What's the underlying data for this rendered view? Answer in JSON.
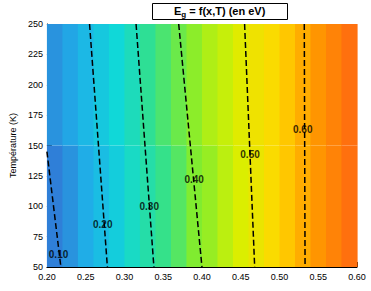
{
  "chart_data": {
    "type": "contour",
    "title": "Eg = f(x,T) (en eV)",
    "y_label": "Température (K)",
    "xlim": [
      0.2,
      0.6
    ],
    "xticks": [
      {
        "value": 0.2,
        "label": "0.20"
      },
      {
        "value": 0.25,
        "label": "0.25"
      },
      {
        "value": 0.3,
        "label": "0.30"
      },
      {
        "value": 0.35,
        "label": "0.35"
      },
      {
        "value": 0.4,
        "label": "0.40"
      },
      {
        "value": 0.45,
        "label": "0.45"
      },
      {
        "value": 0.5,
        "label": "0.50"
      },
      {
        "value": 0.55,
        "label": "0.55"
      },
      {
        "value": 0.6,
        "label": "0.60"
      }
    ],
    "ylim": [
      50,
      250
    ],
    "yticks": [
      50,
      75,
      100,
      125,
      150,
      175,
      200,
      225,
      250
    ],
    "grid": false,
    "cells": {
      "x_edges": [
        0.2,
        0.22,
        0.24,
        0.26,
        0.28,
        0.3,
        0.32,
        0.34,
        0.36,
        0.38,
        0.4,
        0.42,
        0.44,
        0.46,
        0.48,
        0.5,
        0.52,
        0.54,
        0.56,
        0.58,
        0.6
      ],
      "y_edges": [
        50,
        150,
        250
      ],
      "values": [
        [
          0.1,
          0.13,
          0.17,
          0.2,
          0.23,
          0.27,
          0.3,
          0.33,
          0.36,
          0.4,
          0.42,
          0.45,
          0.48,
          0.51,
          0.54,
          0.57,
          0.6,
          0.63,
          0.66,
          0.69
        ],
        [
          0.13,
          0.16,
          0.19,
          0.22,
          0.25,
          0.28,
          0.32,
          0.35,
          0.38,
          0.41,
          0.44,
          0.46,
          0.49,
          0.52,
          0.54,
          0.57,
          0.6,
          0.63,
          0.66,
          0.69
        ]
      ]
    },
    "color_scale": {
      "range": [
        0.1,
        0.7
      ],
      "colors": [
        "#2f7fd8",
        "#1fb0e8",
        "#10d8d8",
        "#30e090",
        "#80ec30",
        "#d8f000",
        "#ffd800",
        "#ff9800",
        "#ff6a10"
      ]
    },
    "contours": [
      {
        "label": "0.10",
        "x": [
          0.2,
          0.218
        ],
        "y": [
          145,
          50
        ],
        "label_x": 0.215,
        "label_y": 60,
        "color": "#000000",
        "line_style": "dashed"
      },
      {
        "label": "0.20",
        "x": [
          0.255,
          0.278
        ],
        "y": [
          250,
          50
        ],
        "label_x": 0.272,
        "label_y": 85,
        "color": "#000000",
        "line_style": "dashed"
      },
      {
        "label": "0.30",
        "x": [
          0.315,
          0.338
        ],
        "y": [
          250,
          50
        ],
        "label_x": 0.332,
        "label_y": 100,
        "color": "#000000",
        "line_style": "dashed"
      },
      {
        "label": "0.40",
        "x": [
          0.37,
          0.385,
          0.4
        ],
        "y": [
          250,
          150,
          50
        ],
        "label_x": 0.39,
        "label_y": 122,
        "color": "#000000",
        "line_style": "dashed"
      },
      {
        "label": "0.50",
        "x": [
          0.455,
          0.468
        ],
        "y": [
          250,
          50
        ],
        "label_x": 0.462,
        "label_y": 143,
        "color": "#000000",
        "line_style": "dashed"
      },
      {
        "label": "0.60",
        "x": [
          0.532,
          0.533
        ],
        "y": [
          250,
          50
        ],
        "label_x": 0.53,
        "label_y": 163,
        "color": "#000000",
        "line_style": "dashed"
      }
    ]
  }
}
